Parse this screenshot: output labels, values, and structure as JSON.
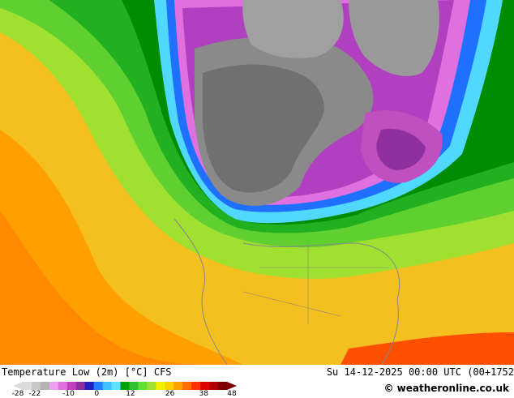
{
  "title": "Temperature Low (2m) [°C] CFS",
  "datetime": "Su 14-12-2025 00:00 UTC (00+1752",
  "credit": "© weatheronline.co.uk",
  "icons": {
    "map": "temperature-map-icon",
    "copyright": "copyright-icon"
  },
  "legend": {
    "ticks": [
      "-28",
      "-22",
      "-10",
      "0",
      "12",
      "26",
      "38",
      "48"
    ],
    "tick_values": [
      -28,
      -22,
      -10,
      0,
      12,
      26,
      38,
      48
    ],
    "colors": [
      "#dcdcdc",
      "#c8c8c8",
      "#b4b4b4",
      "#f0a0f0",
      "#e070e0",
      "#c040c0",
      "#9030a0",
      "#2020c0",
      "#2080ff",
      "#40c0ff",
      "#60e0ff",
      "#00a000",
      "#30c030",
      "#60e030",
      "#a0e030",
      "#f0f000",
      "#ffd000",
      "#ffa000",
      "#ff7000",
      "#ff3000",
      "#e00000",
      "#b00000",
      "#800000"
    ]
  }
}
